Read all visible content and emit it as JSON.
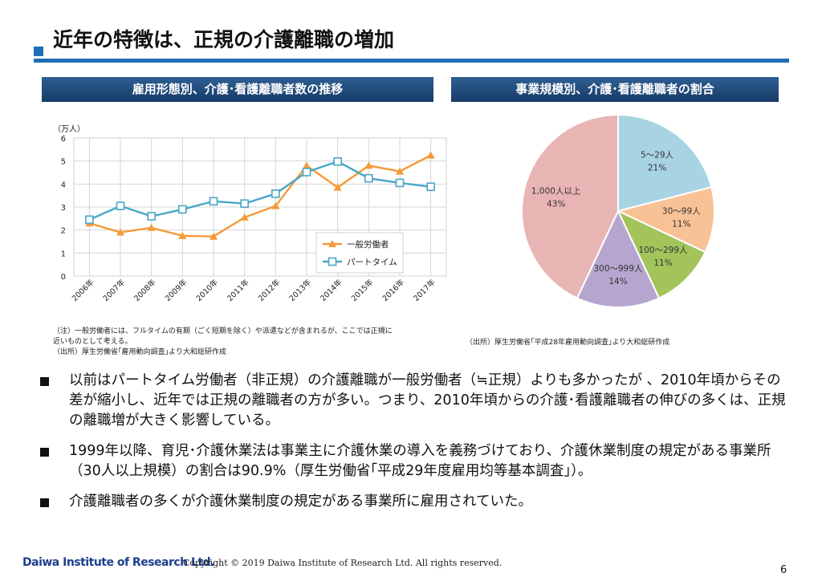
{
  "title": "近年の特徴は、正規の介護離職の増加",
  "left_panel": {
    "heading": "雇用形態別、介護･看護離職者数の推移",
    "note1": "（注）一般労働者には、フルタイムの有期（ごく短期を除く）や派遣などが含まれるが、ここでは正規に",
    "note2": "近いものとして考える。",
    "note3": "（出所）厚生労働省｢雇用動向調査｣より大和総研作成"
  },
  "right_panel": {
    "heading": "事業規模別、介護･看護離職者の割合",
    "note": "（出所）厚生労働省｢平成28年雇用動向調査｣より大和総研作成"
  },
  "chart_data": [
    {
      "type": "line",
      "unit_label": "（万人）",
      "categories": [
        "2006年",
        "2007年",
        "2008年",
        "2009年",
        "2010年",
        "2011年",
        "2012年",
        "2013年",
        "2014年",
        "2015年",
        "2016年",
        "2017年"
      ],
      "ylim": [
        0,
        6
      ],
      "yticks": [
        "0",
        "1",
        "2",
        "3",
        "4",
        "5",
        "6"
      ],
      "grid": true,
      "legend_position": "bottom-right",
      "series": [
        {
          "name": "一般労働者",
          "color": "#f59a38",
          "marker": "triangle",
          "values": [
            2.3,
            1.9,
            2.1,
            1.75,
            1.72,
            2.55,
            3.05,
            4.8,
            3.85,
            4.8,
            4.55,
            5.25
          ]
        },
        {
          "name": "パートタイム",
          "color": "#4aa6c8",
          "marker": "square",
          "values": [
            2.45,
            3.05,
            2.6,
            2.9,
            3.25,
            3.15,
            3.58,
            4.52,
            4.98,
            4.25,
            4.05,
            3.88
          ]
        }
      ]
    },
    {
      "type": "pie",
      "slices": [
        {
          "label": "5～29人",
          "value": 21,
          "pct": "21%",
          "color": "#a8d3e3"
        },
        {
          "label": "30～99人",
          "value": 11,
          "pct": "11%",
          "color": "#f8c296"
        },
        {
          "label": "100～299人",
          "value": 11,
          "pct": "11%",
          "color": "#a2c45a"
        },
        {
          "label": "300～999人",
          "value": 14,
          "pct": "14%",
          "color": "#b6a6cf"
        },
        {
          "label": "1,000人以上",
          "value": 43,
          "pct": "43%",
          "color": "#e9b4b4"
        }
      ]
    }
  ],
  "bullets": [
    "以前はパートタイム労働者（非正規）の介護離職が一般労働者（≒正規）よりも多かったが 、2010年頃からその差が縮小し、近年では正規の離職者の方が多い。つまり、2010年頃からの介護･看護離職者の伸びの多くは、正規の離職増が大きく影響している。",
    "1999年以降、育児･介護休業法は事業主に介護休業の導入を義務づけており、介護休業制度の規定がある事業所（30人以上規模）の割合は90.9%（厚生労働省｢平成29年度雇用均等基本調査｣）。",
    "介護離職者の多くが介護休業制度の規定がある事業所に雇用されていた。"
  ],
  "footer": {
    "logo": "Daiwa Institute of Research Ltd.",
    "copyright": "Copyright © 2019 Daiwa Institute of Research Ltd. All rights reserved.",
    "page": "6"
  }
}
